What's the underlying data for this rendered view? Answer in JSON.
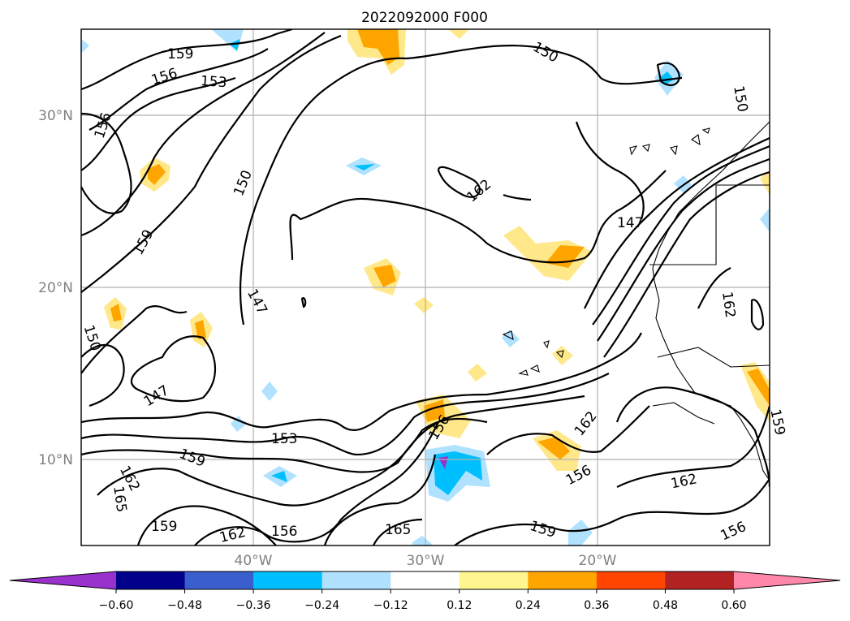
{
  "title": "2022092000 F000",
  "map": {
    "lon_range": [
      -50,
      -10
    ],
    "lat_range": [
      5,
      35
    ],
    "lat_ticks": [
      {
        "value": 30,
        "label": "30°N"
      },
      {
        "value": 20,
        "label": "20°N"
      },
      {
        "value": 10,
        "label": "10°N"
      }
    ],
    "lon_ticks": [
      {
        "value": -40,
        "label": "40°W"
      },
      {
        "value": -30,
        "label": "30°W"
      },
      {
        "value": -20,
        "label": "20°W"
      }
    ],
    "grid": true,
    "contour_labels": [
      "159",
      "156",
      "153",
      "150",
      "150",
      "156",
      "150",
      "147",
      "159",
      "147",
      "150",
      "147",
      "162",
      "153",
      "159",
      "162",
      "165",
      "159",
      "162",
      "156",
      "165",
      "162",
      "156",
      "162",
      "156",
      "159",
      "162"
    ]
  },
  "colorbar": {
    "ticks": [
      "−0.60",
      "−0.48",
      "−0.36",
      "−0.24",
      "−0.12",
      "0.12",
      "0.24",
      "0.36",
      "0.48",
      "0.60"
    ],
    "colors": [
      "#9932cc",
      "#00008b",
      "#3a5fcd",
      "#00bfff",
      "#b0e2ff",
      "#ffffff",
      "#fff68f",
      "#ffa500",
      "#ff4500",
      "#b22222",
      "#ff88aa"
    ],
    "extend": "both"
  },
  "colors": {
    "positive_light": "#ffe88a",
    "positive_mid": "#ffa500",
    "negative_light": "#b0e2ff",
    "negative_mid": "#00bfff",
    "negative_dark": "#9932cc"
  }
}
